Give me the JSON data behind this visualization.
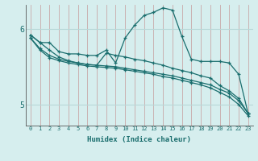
{
  "xlabel": "Humidex (Indice chaleur)",
  "ylabel": "",
  "bg_color": "#d6eeee",
  "line_color": "#1a6e6e",
  "grid_color": "#b8d8d8",
  "vgrid_color": "#c8a8a8",
  "axis_color": "#555555",
  "xlim": [
    -0.5,
    23.5
  ],
  "ylim": [
    4.72,
    6.32
  ],
  "yticks": [
    5.0,
    6.0
  ],
  "xticks": [
    0,
    1,
    2,
    3,
    4,
    5,
    6,
    7,
    8,
    9,
    10,
    11,
    12,
    13,
    14,
    15,
    16,
    17,
    18,
    19,
    20,
    21,
    22,
    23
  ],
  "lines": [
    {
      "x": [
        0,
        1,
        2,
        3,
        4,
        5,
        6,
        7,
        8,
        9,
        10,
        11,
        12,
        13,
        14,
        15,
        16,
        17,
        18,
        19,
        20,
        21,
        22,
        23
      ],
      "y": [
        5.92,
        5.82,
        5.82,
        5.7,
        5.67,
        5.67,
        5.65,
        5.65,
        5.72,
        5.55,
        5.88,
        6.05,
        6.18,
        6.22,
        6.28,
        6.25,
        5.9,
        5.6,
        5.57,
        5.57,
        5.57,
        5.55,
        5.4,
        4.88
      ]
    },
    {
      "x": [
        0,
        1,
        2,
        3,
        4,
        5,
        6,
        7,
        8,
        9,
        10,
        11,
        12,
        13,
        14,
        15,
        16,
        17,
        18,
        19,
        20,
        21,
        22,
        23
      ],
      "y": [
        5.92,
        5.82,
        5.72,
        5.63,
        5.58,
        5.55,
        5.53,
        5.52,
        5.68,
        5.65,
        5.63,
        5.6,
        5.58,
        5.55,
        5.52,
        5.48,
        5.45,
        5.42,
        5.38,
        5.35,
        5.25,
        5.18,
        5.08,
        4.88
      ]
    },
    {
      "x": [
        0,
        1,
        2,
        3,
        4,
        5,
        6,
        7,
        8,
        9,
        10,
        11,
        12,
        13,
        14,
        15,
        16,
        17,
        18,
        19,
        20,
        21,
        22,
        23
      ],
      "y": [
        5.88,
        5.74,
        5.65,
        5.6,
        5.57,
        5.55,
        5.53,
        5.52,
        5.51,
        5.5,
        5.48,
        5.46,
        5.44,
        5.42,
        5.4,
        5.38,
        5.35,
        5.32,
        5.29,
        5.26,
        5.2,
        5.15,
        5.05,
        4.88
      ]
    },
    {
      "x": [
        0,
        1,
        2,
        3,
        4,
        5,
        6,
        7,
        8,
        9,
        10,
        11,
        12,
        13,
        14,
        15,
        16,
        17,
        18,
        19,
        20,
        21,
        22,
        23
      ],
      "y": [
        5.88,
        5.72,
        5.62,
        5.58,
        5.55,
        5.53,
        5.51,
        5.5,
        5.49,
        5.48,
        5.46,
        5.44,
        5.42,
        5.4,
        5.37,
        5.35,
        5.32,
        5.29,
        5.26,
        5.22,
        5.16,
        5.1,
        5.0,
        4.85
      ]
    }
  ]
}
